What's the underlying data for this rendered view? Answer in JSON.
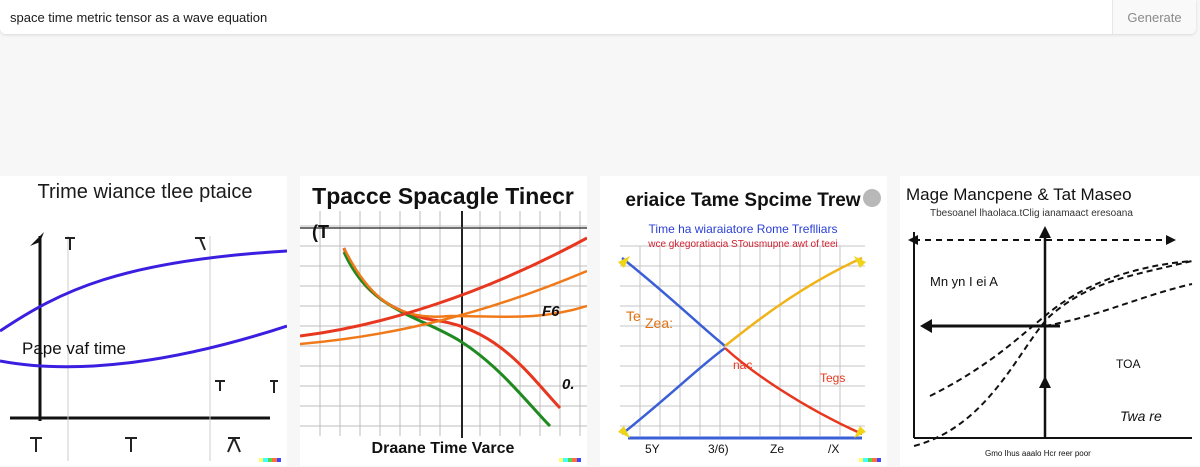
{
  "prompt": {
    "value": "space time metric tensor as a wave equation"
  },
  "generate_button": {
    "label": "Generate"
  },
  "results": [
    {
      "title": "Trime wiance tlee ptaice",
      "labels": [
        "Pape vaf time"
      ]
    },
    {
      "title": "Tpacce Spacagle Tinecr",
      "labels": [
        "Draane Time Varce",
        "F6",
        "0.",
        "(T"
      ]
    },
    {
      "title": "eriaice Tame Spcime Trew",
      "subtitle1": "Time ha wiaraiatore Rome Treflliars",
      "subtitle2": "wce gkegoratiacia STousmupne awt of teei",
      "labels": [
        "Te",
        "Zea:",
        "Tegs",
        "nac",
        "5Y",
        "3/6)",
        "Ze",
        "/X"
      ]
    },
    {
      "title": "Mage Mancpene & Tat Maseo",
      "subtitle1": "Tbesoanel lhaolaca.tClig ianamaact eresoana",
      "labels": [
        "Mn yn I ei A",
        "TOA",
        "Twa re",
        "Gmo Ihus aaalo Hcr reer poor"
      ]
    }
  ],
  "stamp_colors": [
    "#ffff66",
    "#42ffff",
    "#51da4c",
    "#ff6e3c",
    "#3c46ff"
  ]
}
